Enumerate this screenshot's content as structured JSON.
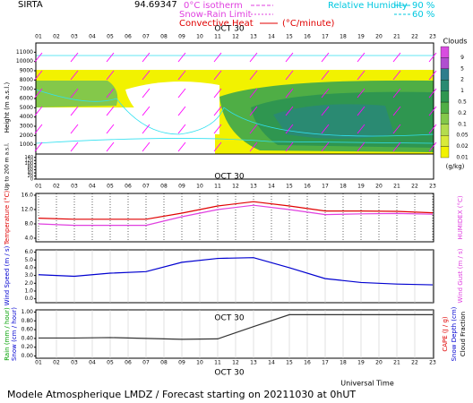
{
  "header": {
    "site": "SIRTA",
    "coords": "94.69347",
    "isotherm": "0°C isotherm",
    "snow_rain": "Snow-Rain Limit",
    "convective": "Convective Heat",
    "convective_unit": "(°C/minute)",
    "rh": "Relative Humidity",
    "rh_90": "90 %",
    "rh_60": "60 %"
  },
  "footer": {
    "time_axis": "Universal Time",
    "caption": "Modele Atmospherique LMDZ / Forecast starting on 20211030 at 0hUT"
  },
  "chart_data": [
    {
      "type": "contour",
      "date_label": "OCT 30",
      "ylabel": "Height (m a.s.l.)",
      "ylabel2": "Up to 200 m a.s.l.",
      "xlim": [
        0.85,
        23.05
      ],
      "xticks": [
        {
          "value": 1,
          "label": "01"
        },
        {
          "value": 2,
          "label": "02"
        },
        {
          "value": 3,
          "label": "03"
        },
        {
          "value": 4,
          "label": "04"
        },
        {
          "value": 5,
          "label": "05"
        },
        {
          "value": 6,
          "label": "06"
        },
        {
          "value": 7,
          "label": "07"
        },
        {
          "value": 8,
          "label": "08"
        },
        {
          "value": 9,
          "label": "09"
        },
        10,
        11,
        12,
        13,
        14,
        15,
        16,
        17,
        18,
        19,
        20,
        21,
        22,
        23
      ],
      "ylim": [
        0,
        12000
      ],
      "yticks": [
        1000,
        2000,
        3000,
        4000,
        5000,
        6000,
        7000,
        8000,
        9000,
        10000,
        11000
      ],
      "y2lim": [
        0,
        150
      ],
      "y2ticks": [
        140,
        120,
        100,
        80,
        60,
        40,
        20,
        0
      ],
      "colorbar": {
        "title": "Clouds",
        "unit": "(g/kg)",
        "ticks": [
          0.01,
          0.02,
          0.05,
          0.1,
          0.2,
          0.5,
          1,
          2,
          5,
          9
        ],
        "colors": [
          "#f2f200",
          "#d9ea3a",
          "#b4dc4e",
          "#84c84a",
          "#4fae45",
          "#2f9650",
          "#2a8a72",
          "#2e7d8c",
          "#b04fd0",
          "#d84ee0"
        ]
      }
    },
    {
      "type": "line",
      "ylabel": "Temperature (°C)",
      "ylabel_right": "HUMIDEX (°C)",
      "date_label": "OCT 30",
      "xlim": [
        0.85,
        23.05
      ],
      "ylim": [
        3,
        16.5
      ],
      "yticks": [
        {
          "value": 4,
          "label": "4.0"
        },
        {
          "value": 8,
          "label": "8.0"
        },
        {
          "value": 12,
          "label": "12.0"
        },
        {
          "value": 16,
          "label": "16.0"
        }
      ],
      "x": [
        1,
        3,
        5,
        7,
        9,
        11,
        13,
        15,
        17,
        19,
        21,
        23
      ],
      "series": [
        {
          "color": "#e00000",
          "values": [
            9.6,
            9.3,
            9.3,
            9.3,
            11.0,
            13.0,
            14.2,
            13.0,
            11.6,
            11.6,
            11.5,
            11.1
          ]
        },
        {
          "color": "#e040e0",
          "values": [
            8.0,
            7.6,
            7.6,
            7.6,
            10.0,
            12.0,
            13.2,
            12.0,
            10.6,
            10.8,
            10.9,
            10.7
          ]
        }
      ]
    },
    {
      "type": "line",
      "ylabel": "Wind Speed (m / s)",
      "ylabel_right": "Wind Gust (m / s)",
      "xlim": [
        0.85,
        23.05
      ],
      "ylim": [
        -0.5,
        6.3
      ],
      "yticks": [
        {
          "value": 0,
          "label": "0.0"
        },
        {
          "value": 1,
          "label": "1.0"
        },
        {
          "value": 2,
          "label": "2.0"
        },
        {
          "value": 3,
          "label": "3.0"
        },
        {
          "value": 4,
          "label": "4.0"
        },
        {
          "value": 5,
          "label": "5.0"
        },
        {
          "value": 6,
          "label": "6.0"
        }
      ],
      "x": [
        1,
        3,
        5,
        7,
        9,
        11,
        13,
        15,
        17,
        19,
        21,
        23
      ],
      "series": [
        {
          "color": "#0000d0",
          "values": [
            3.1,
            2.9,
            3.3,
            3.5,
            4.7,
            5.2,
            5.3,
            4.0,
            2.6,
            2.1,
            1.9,
            1.8
          ]
        }
      ]
    },
    {
      "type": "line",
      "ylabel": "Rain (mm / hour)",
      "ylabel2": "Snow (cm / hour)",
      "ylabel_right": "CAPE (J / g)",
      "ylabel_right2": "Snow Depth (cm)",
      "ylabel_right3": "Cloud Fraction",
      "date_label": "OCT 30",
      "xlim": [
        0.85,
        23.05
      ],
      "ylim": [
        -0.05,
        1.05
      ],
      "yticks": [
        {
          "value": 0,
          "label": "0.00"
        },
        {
          "value": 0.2,
          "label": "0.20"
        },
        {
          "value": 0.4,
          "label": "0.40"
        },
        {
          "value": 0.6,
          "label": "0.60"
        },
        {
          "value": 0.8,
          "label": "0.80"
        },
        {
          "value": 1,
          "label": "1.00"
        }
      ],
      "x": [
        1,
        3,
        5,
        7,
        9,
        11,
        13,
        15,
        17,
        19,
        21,
        23
      ],
      "series": [
        {
          "color": "#333333",
          "values": [
            0.41,
            0.41,
            0.42,
            0.4,
            0.38,
            0.39,
            0.67,
            0.94,
            0.94,
            0.94,
            0.94,
            0.94
          ]
        }
      ]
    }
  ]
}
